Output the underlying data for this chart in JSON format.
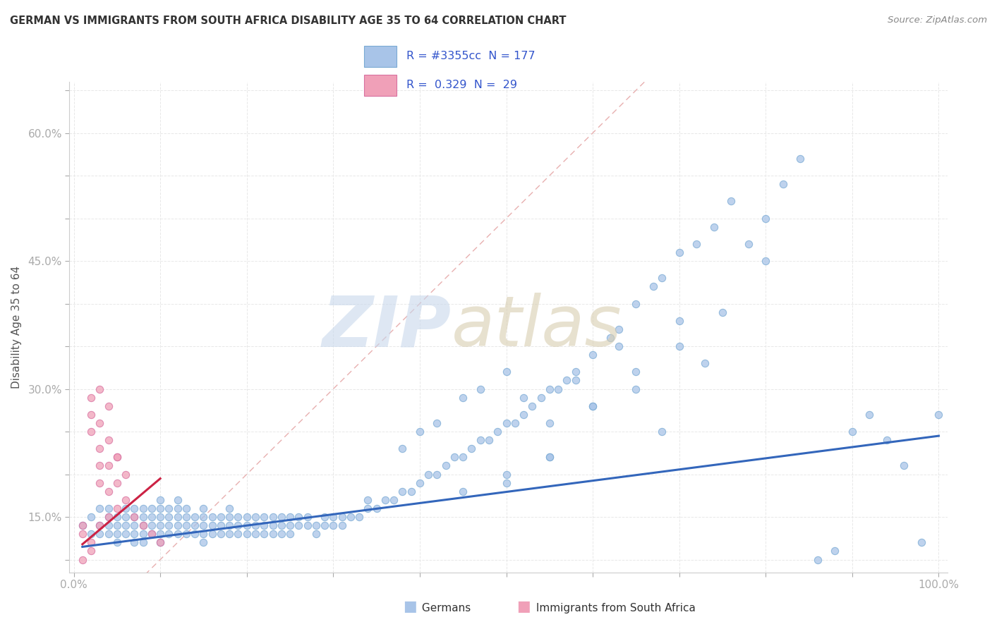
{
  "title": "GERMAN VS IMMIGRANTS FROM SOUTH AFRICA DISABILITY AGE 35 TO 64 CORRELATION CHART",
  "source": "Source: ZipAtlas.com",
  "ylabel": "Disability Age 35 to 64",
  "xlim": [
    -0.005,
    1.01
  ],
  "ylim": [
    0.085,
    0.66
  ],
  "german_color": "#a8c4e8",
  "german_edge": "#7aaad4",
  "immigrant_color": "#f0a0b8",
  "immigrant_edge": "#d870a0",
  "trend_german_color": "#3366bb",
  "trend_immigrant_color": "#cc2244",
  "ref_line_color": "#e8b0b0",
  "legend_r_color": "#3355cc",
  "legend_box_color": "#cccccc",
  "tick_color": "#3355cc",
  "grid_color": "#e8e8e8",
  "german_x": [
    0.01,
    0.02,
    0.02,
    0.03,
    0.03,
    0.03,
    0.04,
    0.04,
    0.04,
    0.04,
    0.05,
    0.05,
    0.05,
    0.05,
    0.06,
    0.06,
    0.06,
    0.06,
    0.07,
    0.07,
    0.07,
    0.07,
    0.07,
    0.08,
    0.08,
    0.08,
    0.08,
    0.08,
    0.09,
    0.09,
    0.09,
    0.09,
    0.1,
    0.1,
    0.1,
    0.1,
    0.1,
    0.1,
    0.11,
    0.11,
    0.11,
    0.11,
    0.12,
    0.12,
    0.12,
    0.12,
    0.12,
    0.13,
    0.13,
    0.13,
    0.13,
    0.14,
    0.14,
    0.14,
    0.15,
    0.15,
    0.15,
    0.15,
    0.15,
    0.16,
    0.16,
    0.16,
    0.17,
    0.17,
    0.17,
    0.18,
    0.18,
    0.18,
    0.18,
    0.19,
    0.19,
    0.19,
    0.2,
    0.2,
    0.2,
    0.21,
    0.21,
    0.21,
    0.22,
    0.22,
    0.22,
    0.23,
    0.23,
    0.23,
    0.24,
    0.24,
    0.24,
    0.25,
    0.25,
    0.25,
    0.26,
    0.26,
    0.27,
    0.27,
    0.28,
    0.28,
    0.29,
    0.29,
    0.3,
    0.3,
    0.31,
    0.31,
    0.32,
    0.33,
    0.34,
    0.34,
    0.35,
    0.36,
    0.37,
    0.38,
    0.39,
    0.4,
    0.41,
    0.42,
    0.43,
    0.44,
    0.45,
    0.46,
    0.47,
    0.48,
    0.49,
    0.5,
    0.51,
    0.52,
    0.53,
    0.54,
    0.55,
    0.56,
    0.57,
    0.58,
    0.6,
    0.62,
    0.63,
    0.65,
    0.67,
    0.68,
    0.7,
    0.72,
    0.74,
    0.76,
    0.78,
    0.8,
    0.82,
    0.84,
    0.86,
    0.88,
    0.9,
    0.92,
    0.94,
    0.96,
    0.98,
    1.0,
    0.45,
    0.5,
    0.55,
    0.6,
    0.65,
    0.7,
    0.75,
    0.8,
    0.5,
    0.55,
    0.6,
    0.65,
    0.7,
    0.4,
    0.45,
    0.5,
    0.55,
    0.38,
    0.42,
    0.47,
    0.52,
    0.58,
    0.63,
    0.68,
    0.73
  ],
  "german_y": [
    0.14,
    0.13,
    0.15,
    0.13,
    0.14,
    0.16,
    0.13,
    0.14,
    0.15,
    0.16,
    0.12,
    0.13,
    0.14,
    0.15,
    0.13,
    0.14,
    0.15,
    0.16,
    0.12,
    0.13,
    0.14,
    0.15,
    0.16,
    0.12,
    0.13,
    0.14,
    0.15,
    0.16,
    0.13,
    0.14,
    0.15,
    0.16,
    0.12,
    0.13,
    0.14,
    0.15,
    0.16,
    0.17,
    0.13,
    0.14,
    0.15,
    0.16,
    0.13,
    0.14,
    0.15,
    0.16,
    0.17,
    0.13,
    0.14,
    0.15,
    0.16,
    0.13,
    0.14,
    0.15,
    0.12,
    0.13,
    0.14,
    0.15,
    0.16,
    0.13,
    0.14,
    0.15,
    0.13,
    0.14,
    0.15,
    0.13,
    0.14,
    0.15,
    0.16,
    0.13,
    0.14,
    0.15,
    0.13,
    0.14,
    0.15,
    0.13,
    0.14,
    0.15,
    0.13,
    0.14,
    0.15,
    0.13,
    0.14,
    0.15,
    0.13,
    0.14,
    0.15,
    0.13,
    0.14,
    0.15,
    0.14,
    0.15,
    0.14,
    0.15,
    0.13,
    0.14,
    0.14,
    0.15,
    0.14,
    0.15,
    0.14,
    0.15,
    0.15,
    0.15,
    0.16,
    0.17,
    0.16,
    0.17,
    0.17,
    0.18,
    0.18,
    0.19,
    0.2,
    0.2,
    0.21,
    0.22,
    0.22,
    0.23,
    0.24,
    0.24,
    0.25,
    0.26,
    0.26,
    0.27,
    0.28,
    0.29,
    0.3,
    0.3,
    0.31,
    0.32,
    0.34,
    0.36,
    0.37,
    0.4,
    0.42,
    0.43,
    0.46,
    0.47,
    0.49,
    0.52,
    0.47,
    0.5,
    0.54,
    0.57,
    0.1,
    0.11,
    0.25,
    0.27,
    0.24,
    0.21,
    0.12,
    0.27,
    0.18,
    0.2,
    0.22,
    0.28,
    0.3,
    0.35,
    0.39,
    0.45,
    0.19,
    0.22,
    0.28,
    0.32,
    0.38,
    0.25,
    0.29,
    0.32,
    0.26,
    0.23,
    0.26,
    0.3,
    0.29,
    0.31,
    0.35,
    0.25,
    0.33
  ],
  "immigrant_x": [
    0.01,
    0.01,
    0.01,
    0.02,
    0.02,
    0.02,
    0.02,
    0.03,
    0.03,
    0.03,
    0.03,
    0.03,
    0.04,
    0.04,
    0.04,
    0.04,
    0.05,
    0.05,
    0.05,
    0.06,
    0.06,
    0.07,
    0.08,
    0.09,
    0.1,
    0.02,
    0.03,
    0.04,
    0.05
  ],
  "immigrant_y": [
    0.1,
    0.13,
    0.14,
    0.12,
    0.25,
    0.27,
    0.29,
    0.14,
    0.19,
    0.21,
    0.23,
    0.26,
    0.15,
    0.18,
    0.21,
    0.24,
    0.16,
    0.19,
    0.22,
    0.17,
    0.2,
    0.15,
    0.14,
    0.13,
    0.12,
    0.11,
    0.3,
    0.28,
    0.22
  ],
  "trend_g_x0": 0.01,
  "trend_g_x1": 1.0,
  "trend_g_y0": 0.115,
  "trend_g_y1": 0.245,
  "trend_i_x0": 0.01,
  "trend_i_x1": 0.1,
  "trend_i_y0": 0.118,
  "trend_i_y1": 0.195
}
